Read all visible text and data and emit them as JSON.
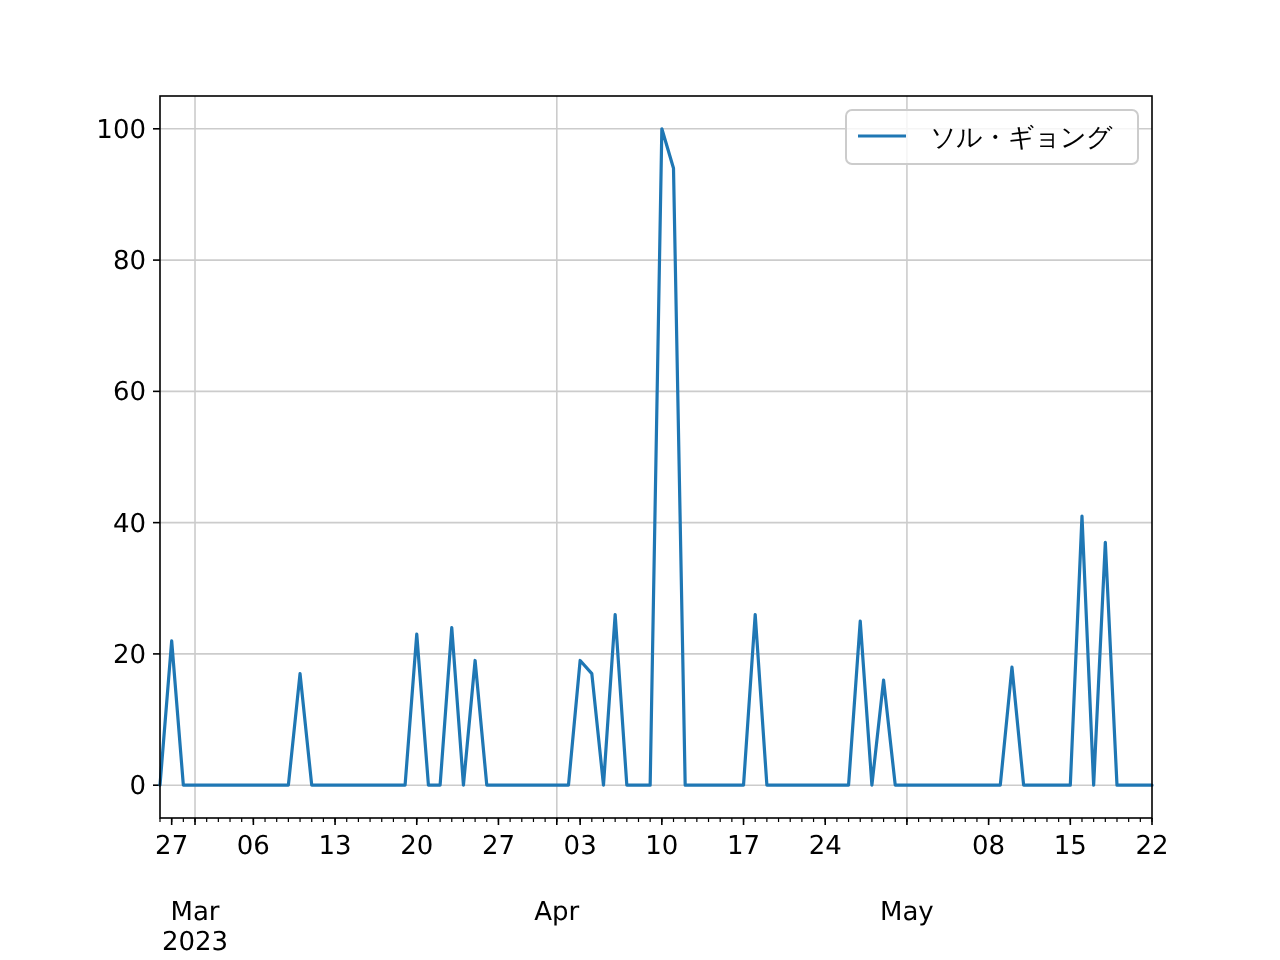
{
  "chart_data": {
    "type": "line",
    "x": [
      "2023-02-26",
      "2023-02-27",
      "2023-02-28",
      "2023-03-01",
      "2023-03-02",
      "2023-03-03",
      "2023-03-04",
      "2023-03-05",
      "2023-03-06",
      "2023-03-07",
      "2023-03-08",
      "2023-03-09",
      "2023-03-10",
      "2023-03-11",
      "2023-03-12",
      "2023-03-13",
      "2023-03-14",
      "2023-03-15",
      "2023-03-16",
      "2023-03-17",
      "2023-03-18",
      "2023-03-19",
      "2023-03-20",
      "2023-03-21",
      "2023-03-22",
      "2023-03-23",
      "2023-03-24",
      "2023-03-25",
      "2023-03-26",
      "2023-03-27",
      "2023-03-28",
      "2023-03-29",
      "2023-03-30",
      "2023-03-31",
      "2023-04-01",
      "2023-04-02",
      "2023-04-03",
      "2023-04-04",
      "2023-04-05",
      "2023-04-06",
      "2023-04-07",
      "2023-04-08",
      "2023-04-09",
      "2023-04-10",
      "2023-04-11",
      "2023-04-12",
      "2023-04-13",
      "2023-04-14",
      "2023-04-15",
      "2023-04-16",
      "2023-04-17",
      "2023-04-18",
      "2023-04-19",
      "2023-04-20",
      "2023-04-21",
      "2023-04-22",
      "2023-04-23",
      "2023-04-24",
      "2023-04-25",
      "2023-04-26",
      "2023-04-27",
      "2023-04-28",
      "2023-04-29",
      "2023-04-30",
      "2023-05-01",
      "2023-05-02",
      "2023-05-03",
      "2023-05-04",
      "2023-05-05",
      "2023-05-06",
      "2023-05-07",
      "2023-05-08",
      "2023-05-09",
      "2023-05-10",
      "2023-05-11",
      "2023-05-12",
      "2023-05-13",
      "2023-05-14",
      "2023-05-15",
      "2023-05-16",
      "2023-05-17",
      "2023-05-18",
      "2023-05-19",
      "2023-05-20",
      "2023-05-21",
      "2023-05-22"
    ],
    "series": [
      {
        "name": "ソル・ギョング",
        "color": "#1f77b4",
        "values": [
          0,
          22,
          0,
          0,
          0,
          0,
          0,
          0,
          0,
          0,
          0,
          0,
          17,
          0,
          0,
          0,
          0,
          0,
          0,
          0,
          0,
          0,
          23,
          0,
          0,
          24,
          0,
          19,
          0,
          0,
          0,
          0,
          0,
          0,
          0,
          0,
          19,
          17,
          0,
          26,
          0,
          0,
          0,
          100,
          94,
          0,
          0,
          0,
          0,
          0,
          0,
          26,
          0,
          0,
          0,
          0,
          0,
          0,
          0,
          0,
          25,
          0,
          16,
          0,
          0,
          0,
          0,
          0,
          0,
          0,
          0,
          0,
          0,
          18,
          0,
          0,
          0,
          0,
          0,
          41,
          0,
          37,
          0,
          0,
          0,
          0
        ]
      }
    ],
    "xlim": [
      "2023-02-26",
      "2023-05-22"
    ],
    "xticks": [
      {
        "value": "2023-02-27",
        "label": "27"
      },
      {
        "value": "2023-03-01",
        "label": null
      },
      {
        "value": "2023-03-06",
        "label": "06"
      },
      {
        "value": "2023-03-13",
        "label": "13"
      },
      {
        "value": "2023-03-20",
        "label": "20"
      },
      {
        "value": "2023-03-27",
        "label": "27"
      },
      {
        "value": "2023-04-01",
        "label": null
      },
      {
        "value": "2023-04-03",
        "label": "03"
      },
      {
        "value": "2023-04-10",
        "label": "10"
      },
      {
        "value": "2023-04-17",
        "label": "17"
      },
      {
        "value": "2023-04-24",
        "label": "24"
      },
      {
        "value": "2023-05-01",
        "label": null
      },
      {
        "value": "2023-05-08",
        "label": "08"
      },
      {
        "value": "2023-05-15",
        "label": "15"
      },
      {
        "value": "2023-05-22",
        "label": "22"
      }
    ],
    "annotations": [
      "Mar\n2023",
      "Apr",
      "May"
    ],
    "ylim": [
      -5,
      105
    ],
    "yticks": [
      0,
      20,
      40,
      60,
      80,
      100
    ],
    "grid": true,
    "legend": "top right",
    "marker": "none",
    "line_style": "solid"
  }
}
